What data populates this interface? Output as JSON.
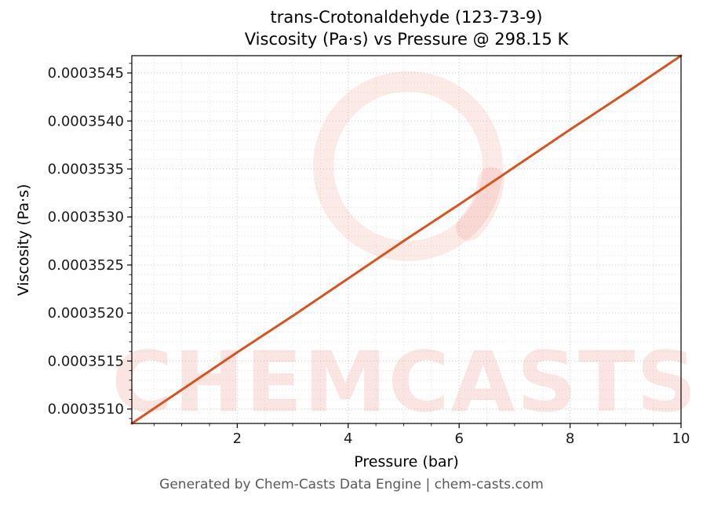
{
  "title": {
    "line1": "trans-Crotonaldehyde (123-73-9)",
    "line2": "Viscosity (Pa·s) vs Pressure @ 298.15 K"
  },
  "footer": "Generated by Chem-Casts Data Engine | chem-casts.com",
  "watermark": {
    "text": "CHEMCASTS",
    "color": "#e8503a",
    "text_opacity": 0.14,
    "ring_opacity": 0.12
  },
  "chart_data": {
    "type": "line",
    "title": "trans-Crotonaldehyde (123-73-9)\nViscosity (Pa·s) vs Pressure @ 298.15 K",
    "xlabel": "Pressure (bar)",
    "ylabel": "Viscosity (Pa·s)",
    "xlim": [
      0.1,
      10
    ],
    "ylim": [
      0.00035085,
      0.00035468
    ],
    "grid": true,
    "legend": false,
    "line_color": "#d9531f",
    "x_ticks": [
      2,
      4,
      6,
      8,
      10
    ],
    "x_tick_labels": [
      "2",
      "4",
      "6",
      "8",
      "10"
    ],
    "x_minor_step": 0.5,
    "y_ticks": [
      0.000351,
      0.0003515,
      0.000352,
      0.0003525,
      0.000353,
      0.0003535,
      0.000354,
      0.0003545
    ],
    "y_tick_labels": [
      "0.0003510",
      "0.0003515",
      "0.0003520",
      "0.0003525",
      "0.0003530",
      "0.0003535",
      "0.0003540",
      "0.0003545"
    ],
    "y_minor_step": 1e-07,
    "series": [
      {
        "name": "viscosity_vs_pressure",
        "x": [
          0.1,
          1,
          2,
          3,
          4,
          5,
          6,
          7,
          8,
          9,
          10
        ],
        "y": [
          0.00035085,
          0.0003512,
          0.00035159,
          0.00035197,
          0.00035236,
          0.00035275,
          0.00035313,
          0.00035352,
          0.00035391,
          0.00035429,
          0.00035468
        ]
      }
    ]
  }
}
